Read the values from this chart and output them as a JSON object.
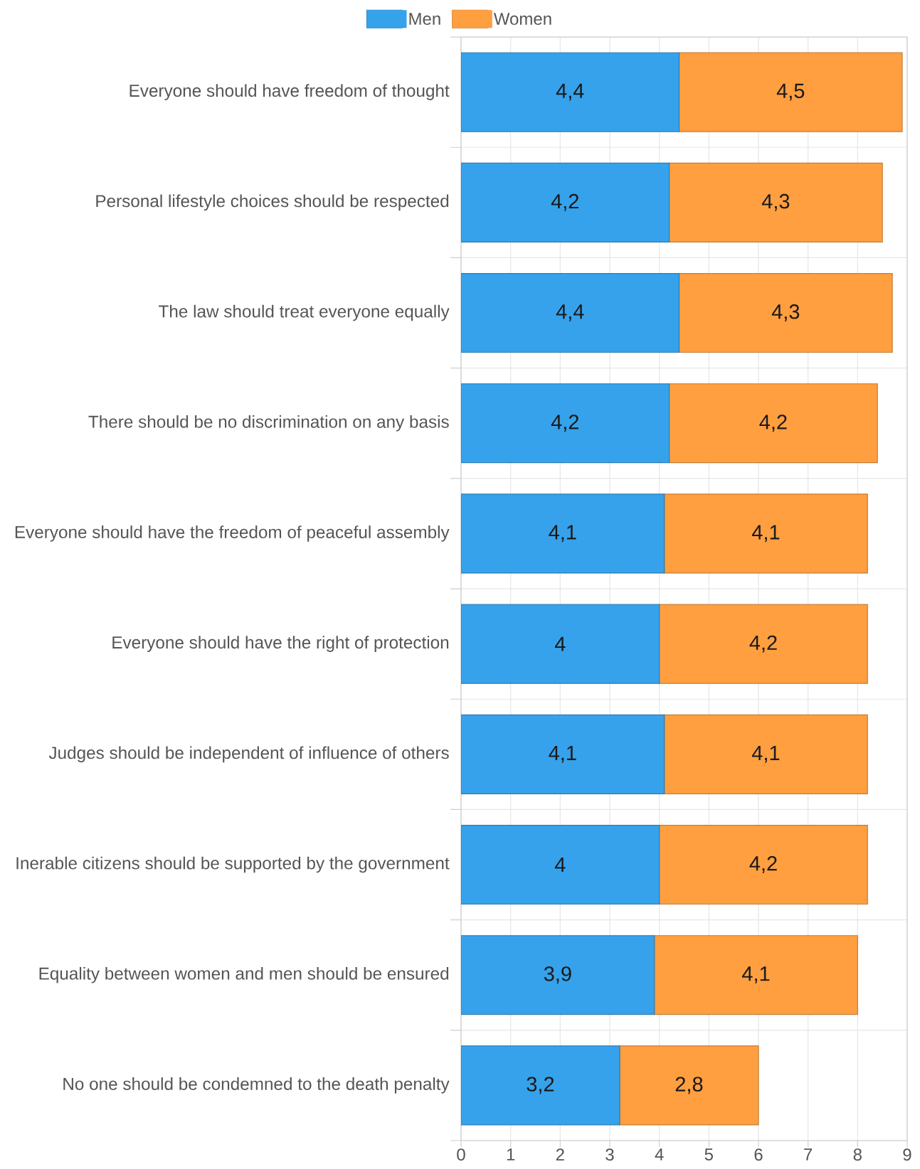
{
  "chart_data": {
    "type": "bar",
    "orientation": "horizontal",
    "stacked": true,
    "categories": [
      "Everyone should have freedom of thought",
      "Personal lifestyle choices should be respected",
      "The law should treat everyone equally",
      "There should be no discrimination on any basis",
      "Everyone should have the freedom of peaceful assembly",
      "Everyone should have the right of protection",
      "Judges should be independent of influence of others",
      "Inerable citizens should be supported by the government",
      "Equality between women and men should be ensured",
      "No one should be condemned to the death penalty"
    ],
    "series": [
      {
        "name": "Men",
        "color": "#36a2eb",
        "values": [
          4.4,
          4.2,
          4.4,
          4.2,
          4.1,
          4.0,
          4.1,
          4.0,
          3.9,
          3.2
        ],
        "value_labels": [
          "4,4",
          "4,2",
          "4,4",
          "4,2",
          "4,1",
          "4",
          "4,1",
          "4",
          "3,9",
          "3,2"
        ]
      },
      {
        "name": "Women",
        "color": "#ff9f40",
        "values": [
          4.5,
          4.3,
          4.3,
          4.2,
          4.1,
          4.2,
          4.1,
          4.2,
          4.1,
          2.8
        ],
        "value_labels": [
          "4,5",
          "4,3",
          "4,3",
          "4,2",
          "4,1",
          "4,2",
          "4,1",
          "4,2",
          "4,1",
          "2,8"
        ]
      }
    ],
    "xlim": [
      0,
      9
    ],
    "xticks": [
      0,
      1,
      2,
      3,
      4,
      5,
      6,
      7,
      8,
      9
    ],
    "grid": true,
    "legend": "top"
  }
}
